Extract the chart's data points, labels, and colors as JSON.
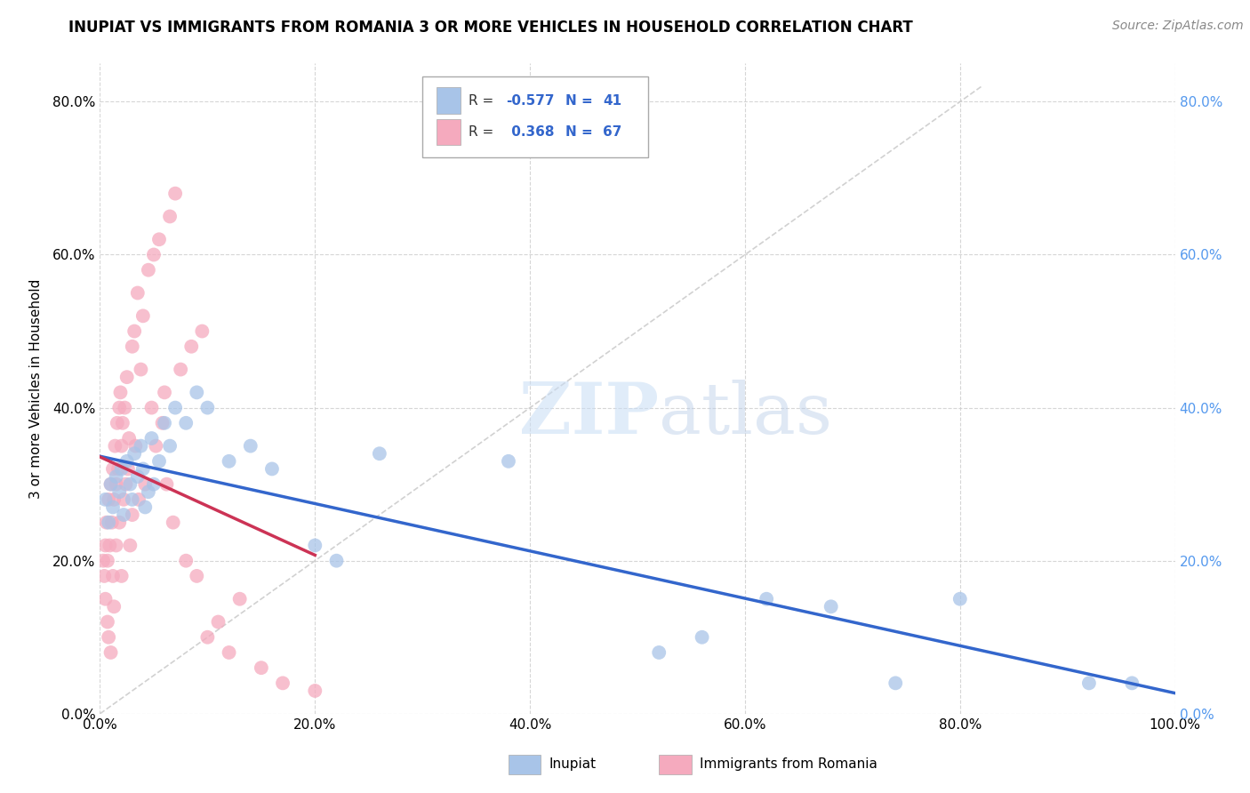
{
  "title": "INUPIAT VS IMMIGRANTS FROM ROMANIA 3 OR MORE VEHICLES IN HOUSEHOLD CORRELATION CHART",
  "source": "Source: ZipAtlas.com",
  "ylabel": "3 or more Vehicles in Household",
  "xlim": [
    0.0,
    1.0
  ],
  "ylim": [
    0.0,
    0.85
  ],
  "xtick_vals": [
    0.0,
    0.2,
    0.4,
    0.6,
    0.8,
    1.0
  ],
  "ytick_vals": [
    0.0,
    0.2,
    0.4,
    0.6,
    0.8
  ],
  "inupiat_color": "#a8c4e8",
  "romania_color": "#f5aabe",
  "inupiat_R": -0.577,
  "inupiat_N": 41,
  "romania_R": 0.368,
  "romania_N": 67,
  "legend_label_1": "Inupiat",
  "legend_label_2": "Immigrants from Romania",
  "inupiat_scatter_x": [
    0.005,
    0.008,
    0.01,
    0.012,
    0.015,
    0.018,
    0.02,
    0.022,
    0.025,
    0.028,
    0.03,
    0.032,
    0.035,
    0.038,
    0.04,
    0.042,
    0.045,
    0.048,
    0.05,
    0.055,
    0.06,
    0.065,
    0.07,
    0.08,
    0.09,
    0.1,
    0.12,
    0.14,
    0.16,
    0.2,
    0.22,
    0.26,
    0.38,
    0.52,
    0.56,
    0.62,
    0.68,
    0.74,
    0.8,
    0.92,
    0.96
  ],
  "inupiat_scatter_y": [
    0.28,
    0.25,
    0.3,
    0.27,
    0.31,
    0.29,
    0.32,
    0.26,
    0.33,
    0.3,
    0.28,
    0.34,
    0.31,
    0.35,
    0.32,
    0.27,
    0.29,
    0.36,
    0.3,
    0.33,
    0.38,
    0.35,
    0.4,
    0.38,
    0.42,
    0.4,
    0.33,
    0.35,
    0.32,
    0.22,
    0.2,
    0.34,
    0.33,
    0.08,
    0.1,
    0.15,
    0.14,
    0.04,
    0.15,
    0.04,
    0.04
  ],
  "romania_scatter_x": [
    0.003,
    0.004,
    0.005,
    0.005,
    0.006,
    0.007,
    0.007,
    0.008,
    0.008,
    0.009,
    0.01,
    0.01,
    0.011,
    0.012,
    0.012,
    0.013,
    0.013,
    0.014,
    0.015,
    0.015,
    0.016,
    0.017,
    0.018,
    0.018,
    0.019,
    0.02,
    0.02,
    0.021,
    0.022,
    0.023,
    0.024,
    0.025,
    0.026,
    0.027,
    0.028,
    0.03,
    0.03,
    0.032,
    0.033,
    0.035,
    0.036,
    0.038,
    0.04,
    0.042,
    0.045,
    0.048,
    0.05,
    0.052,
    0.055,
    0.058,
    0.06,
    0.062,
    0.065,
    0.068,
    0.07,
    0.075,
    0.08,
    0.085,
    0.09,
    0.095,
    0.1,
    0.11,
    0.12,
    0.13,
    0.15,
    0.17,
    0.2
  ],
  "romania_scatter_y": [
    0.2,
    0.18,
    0.22,
    0.15,
    0.25,
    0.2,
    0.12,
    0.28,
    0.1,
    0.22,
    0.3,
    0.08,
    0.25,
    0.32,
    0.18,
    0.28,
    0.14,
    0.35,
    0.3,
    0.22,
    0.38,
    0.32,
    0.4,
    0.25,
    0.42,
    0.35,
    0.18,
    0.38,
    0.28,
    0.4,
    0.3,
    0.44,
    0.32,
    0.36,
    0.22,
    0.48,
    0.26,
    0.5,
    0.35,
    0.55,
    0.28,
    0.45,
    0.52,
    0.3,
    0.58,
    0.4,
    0.6,
    0.35,
    0.62,
    0.38,
    0.42,
    0.3,
    0.65,
    0.25,
    0.68,
    0.45,
    0.2,
    0.48,
    0.18,
    0.5,
    0.1,
    0.12,
    0.08,
    0.15,
    0.06,
    0.04,
    0.03
  ],
  "title_fontsize": 12,
  "axis_label_fontsize": 11,
  "tick_fontsize": 11,
  "source_fontsize": 10,
  "background_color": "#ffffff",
  "grid_color": "#cccccc",
  "right_ytick_color": "#5599ee",
  "inupiat_line_color": "#3366cc",
  "romania_line_color": "#cc3355",
  "watermark_color": "#ddeeff"
}
